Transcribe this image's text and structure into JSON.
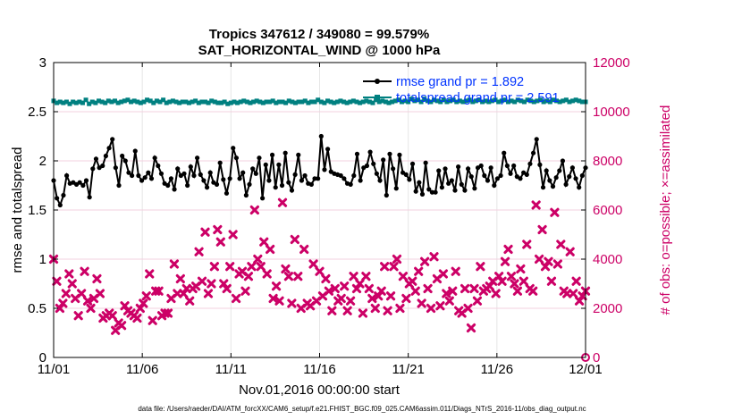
{
  "chart_data": {
    "type": "line",
    "title": "Tropics 347612 / 349080 = 99.579%",
    "subtitle": "SAT_HORIZONTAL_WIND @ 1000 hPa",
    "xlabel": "Nov.01,2016 00:00:00 start",
    "ylabel": "rmse and totalspread",
    "ylabel_right": "# of obs: o=possible; ×=assimilated",
    "xlim": [
      0,
      30
    ],
    "ylim": [
      0,
      3
    ],
    "ylim_right": [
      0,
      12000
    ],
    "x_ticks": [
      0,
      5,
      10,
      15,
      20,
      25,
      30
    ],
    "x_tick_labels": [
      "11/01",
      "11/06",
      "11/11",
      "11/16",
      "11/21",
      "11/26",
      "12/01"
    ],
    "y_ticks": [
      0,
      0.5,
      1,
      1.5,
      2,
      2.5,
      3
    ],
    "y_tick_labels": [
      "0",
      "0.5",
      "1",
      "1.5",
      "2",
      "2.5",
      "3"
    ],
    "y_ticks_right": [
      0,
      2000,
      4000,
      6000,
      8000,
      10000,
      12000
    ],
    "y_tick_labels_right": [
      "0",
      "2000",
      "4000",
      "6000",
      "8000",
      "10000",
      "12000"
    ],
    "legend": [
      {
        "label": "rmse grand pr = 1.892",
        "color": "#000000"
      },
      {
        "label": "totalspread grand pr = 2.591",
        "color": "#008080"
      }
    ],
    "series": [
      {
        "name": "rmse",
        "axis": "left",
        "color": "#000000",
        "marker": "circle",
        "values": [
          1.8,
          1.62,
          1.55,
          1.65,
          1.85,
          1.77,
          1.78,
          1.76,
          1.78,
          1.75,
          1.8,
          1.63,
          1.92,
          2.02,
          1.93,
          1.95,
          2.05,
          2.13,
          2.22,
          1.93,
          1.75,
          2.05,
          2.0,
          1.88,
          1.85,
          2.1,
          1.85,
          1.8,
          1.83,
          1.88,
          1.82,
          2.03,
          1.95,
          1.87,
          1.77,
          1.75,
          1.82,
          1.71,
          1.92,
          1.85,
          1.87,
          1.75,
          1.94,
          1.85,
          2.03,
          1.86,
          1.8,
          1.73,
          1.88,
          1.78,
          1.76,
          1.98,
          1.81,
          1.67,
          1.82,
          2.13,
          2.03,
          1.82,
          1.88,
          1.65,
          1.76,
          1.92,
          1.87,
          2.03,
          1.62,
          1.96,
          1.8,
          2.06,
          1.73,
          1.96,
          1.75,
          2.08,
          1.78,
          1.7,
          1.86,
          2.06,
          1.8,
          1.85,
          1.77,
          1.76,
          1.82,
          1.82,
          2.25,
          1.91,
          2.12,
          1.89,
          1.87,
          1.86,
          1.85,
          1.82,
          1.77,
          1.76,
          1.85,
          2.07,
          1.8,
          1.93,
          1.95,
          2.09,
          1.97,
          1.87,
          1.8,
          2.01,
          1.65,
          2.07,
          1.92,
          1.72,
          2.06,
          1.88,
          1.86,
          1.81,
          1.97,
          1.69,
          1.78,
          1.66,
          1.98,
          1.71,
          1.68,
          1.68,
          1.9,
          1.73,
          1.92,
          1.77,
          1.8,
          1.7,
          1.94,
          1.76,
          1.7,
          1.92,
          1.84,
          1.72,
          1.93,
          1.95,
          1.85,
          1.8,
          1.93,
          1.75,
          1.82,
          1.85,
          2.08,
          1.95,
          1.87,
          1.95,
          1.84,
          1.82,
          1.88,
          1.86,
          1.97,
          2.08,
          2.22,
          1.96,
          1.73,
          1.9,
          1.8,
          1.74,
          1.83,
          1.9,
          2.0,
          1.76,
          1.84,
          1.93,
          1.82,
          1.73,
          1.85,
          1.93
        ]
      },
      {
        "name": "totalspread",
        "axis": "left",
        "color": "#008080",
        "marker": "square",
        "values": [
          2.61,
          2.59,
          2.6,
          2.59,
          2.6,
          2.58,
          2.6,
          2.59,
          2.6,
          2.59,
          2.62,
          2.58,
          2.6,
          2.59,
          2.61,
          2.6,
          2.59,
          2.61,
          2.6,
          2.61,
          2.59,
          2.6,
          2.61,
          2.62,
          2.6,
          2.61,
          2.6,
          2.59,
          2.6,
          2.62,
          2.61,
          2.59,
          2.61,
          2.6,
          2.62,
          2.59,
          2.6,
          2.61,
          2.6,
          2.59,
          2.6,
          2.6,
          2.59,
          2.6,
          2.61,
          2.59,
          2.6,
          2.6,
          2.59,
          2.61,
          2.6,
          2.59,
          2.59,
          2.6,
          2.58,
          2.59,
          2.6,
          2.59,
          2.6,
          2.61,
          2.6,
          2.59,
          2.6,
          2.61,
          2.6,
          2.59,
          2.6,
          2.6,
          2.61,
          2.59,
          2.6,
          2.6,
          2.59,
          2.61,
          2.6,
          2.59,
          2.6,
          2.6,
          2.61,
          2.59,
          2.6,
          2.6,
          2.62,
          2.6,
          2.59,
          2.61,
          2.6,
          2.59,
          2.6,
          2.61,
          2.6,
          2.59,
          2.6,
          2.61,
          2.6,
          2.59,
          2.6,
          2.61,
          2.6,
          2.59,
          2.62,
          2.6,
          2.61,
          2.6,
          2.59,
          2.6,
          2.61,
          2.62,
          2.6,
          2.61,
          2.6,
          2.63,
          2.61,
          2.62,
          2.6,
          2.63,
          2.61,
          2.6,
          2.62,
          2.61,
          2.6,
          2.62,
          2.6,
          2.61,
          2.62,
          2.6,
          2.61,
          2.6,
          2.61,
          2.62,
          2.6,
          2.61,
          2.62,
          2.6,
          2.61,
          2.6,
          2.61,
          2.62,
          2.6,
          2.61,
          2.62,
          2.6,
          2.61,
          2.6,
          2.62,
          2.61,
          2.6,
          2.62,
          2.61,
          2.6,
          2.61,
          2.62,
          2.6,
          2.61,
          2.6,
          2.62,
          2.61,
          2.6,
          2.61,
          2.62,
          2.6,
          2.61,
          2.62,
          2.61,
          2.6,
          2.6
        ]
      },
      {
        "name": "# obs assimilated",
        "axis": "right",
        "color": "#cc0066",
        "marker": "x",
        "values": [
          4000,
          3100,
          2000,
          2200,
          2600,
          3400,
          3000,
          2400,
          1700,
          2600,
          3500,
          2300,
          2000,
          2400,
          3200,
          2600,
          1600,
          1700,
          1800,
          1700,
          1100,
          1400,
          1300,
          2100,
          1900,
          1800,
          1700,
          1600,
          2000,
          2200,
          2500,
          3400,
          1500,
          2700,
          2700,
          1700,
          1800,
          1800,
          2400,
          3800,
          2600,
          3200,
          2600,
          2800,
          2300,
          2800,
          2900,
          4300,
          3100,
          5100,
          2600,
          3000,
          3700,
          5200,
          4700,
          3000,
          2800,
          3700,
          5000,
          2400,
          3400,
          3500,
          2700,
          3300,
          3700,
          6000,
          4000,
          3700,
          4700,
          3400,
          4400,
          2400,
          2900,
          2300,
          6300,
          3600,
          3300,
          2200,
          4800,
          3300,
          2000,
          4400,
          2200,
          2100,
          3800,
          2300,
          3500,
          2500,
          3200,
          2700,
          1900,
          2800,
          2300,
          2400,
          2900,
          1900,
          2300,
          3300,
          2800,
          3000,
          1800,
          3300,
          2800,
          2400,
          2000,
          2500,
          2700,
          3700,
          1900,
          2500,
          3700,
          4000,
          2000,
          3300,
          2400,
          3000,
          3100,
          2700,
          3500,
          2200,
          3900,
          2800,
          2000,
          4100,
          3200,
          2100,
          3400,
          2600,
          2300,
          2700,
          3500,
          1900,
          1800,
          2800,
          2000,
          1200,
          2800,
          2300,
          3700,
          2700,
          2800,
          2900,
          3100,
          2600,
          3300,
          3100,
          3900,
          4400,
          3300,
          3000,
          2700,
          3600,
          3100,
          4600,
          2800,
          2700,
          6200,
          4000,
          5200,
          3700,
          3900,
          3100,
          5900,
          3800,
          4600,
          2700,
          2600,
          4300,
          2600,
          3100,
          2300,
          2500,
          2700
        ]
      }
    ]
  },
  "footer": "data file: /Users/raeder/DAI/ATM_forcXX/CAM6_setup/f.e21.FHIST_BGC.f09_025.CAM6assim.011/Diags_NTrS_2016-11/obs_diag_output.nc"
}
